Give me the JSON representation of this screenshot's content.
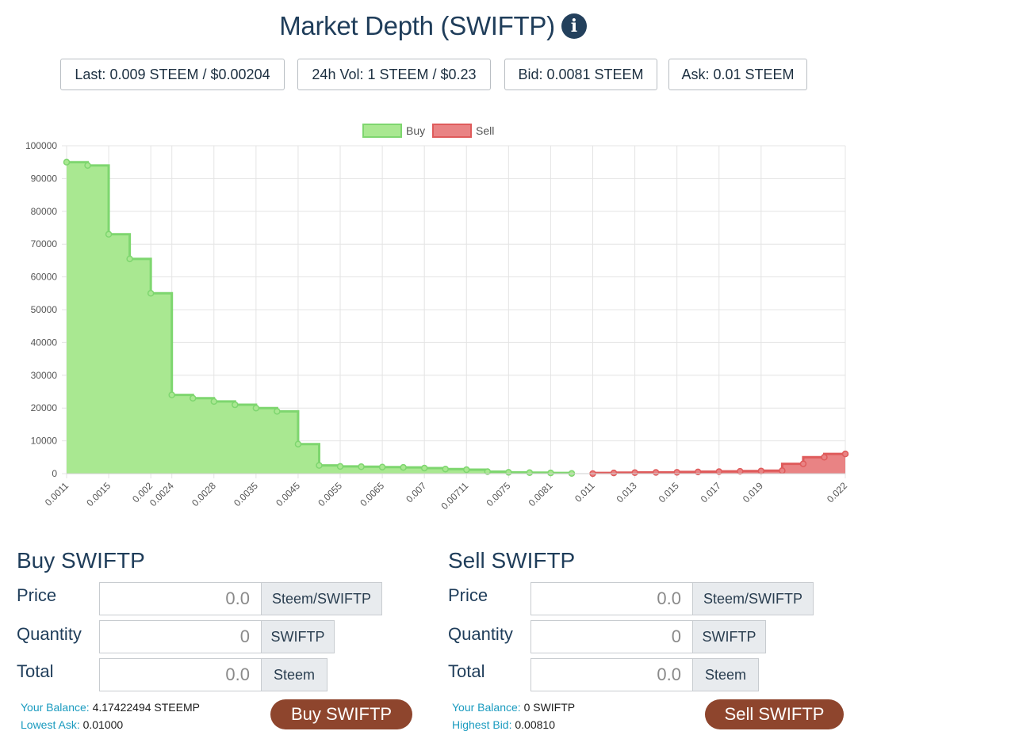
{
  "header": {
    "title": "Market Depth (SWIFTP)",
    "info_icon": "info-circle-icon"
  },
  "stats": {
    "last_label": "Last:",
    "last_value": "0.009 STEEM / $0.00204",
    "vol_label": "24h Vol:",
    "vol_value": "1 STEEM / $0.23",
    "bid_label": "Bid:",
    "bid_value": "0.0081 STEEM",
    "ask_label": "Ask:",
    "ask_value": "0.01 STEEM"
  },
  "chart_data": {
    "type": "area",
    "legend_position": "top-center",
    "grid": true,
    "ylim": [
      0,
      100000
    ],
    "y_ticks": [
      "100000",
      "90000",
      "80000",
      "70000",
      "60000",
      "50000",
      "40000",
      "30000",
      "20000",
      "10000",
      "0"
    ],
    "x_tick_labels": [
      "0.0011",
      "0.0015",
      "0.002",
      "0.0024",
      "0.0028",
      "0.0035",
      "0.0045",
      "0.0055",
      "0.0065",
      "0.007",
      "0.00711",
      "0.0075",
      "0.0081",
      "0.011",
      "0.013",
      "0.015",
      "0.017",
      "0.019",
      "0.022"
    ],
    "x_tick_index": [
      0,
      2,
      4,
      5,
      7,
      9,
      11,
      13,
      15,
      17,
      19,
      21,
      23,
      25,
      27,
      29,
      31,
      33,
      37
    ],
    "series": [
      {
        "name": "Buy",
        "color": "#7ed66f",
        "fill": "#a9e891",
        "values": [
          95000,
          94000,
          73000,
          65500,
          55000,
          24000,
          23000,
          22000,
          21000,
          20000,
          19000,
          9000,
          2500,
          2200,
          2100,
          2000,
          1900,
          1700,
          1400,
          1200,
          600,
          400,
          300,
          200,
          50
        ]
      },
      {
        "name": "Sell",
        "color": "#df5b5b",
        "fill": "#e98384",
        "values": [
          0,
          200,
          300,
          350,
          400,
          500,
          600,
          700,
          800,
          900,
          3000,
          5000,
          6000
        ]
      }
    ]
  },
  "buy": {
    "title": "Buy SWIFTP",
    "price_label": "Price",
    "price_placeholder": "0.0",
    "price_unit": "Steem/SWIFTP",
    "qty_label": "Quantity",
    "qty_placeholder": "0",
    "qty_unit": "SWIFTP",
    "total_label": "Total",
    "total_placeholder": "0.0",
    "total_unit": "Steem",
    "balance_label": "Your Balance:",
    "balance_value": "4.17422494 STEEMP",
    "best_label": "Lowest Ask:",
    "best_value": "0.01000",
    "button": "Buy SWIFTP"
  },
  "sell": {
    "title": "Sell SWIFTP",
    "price_label": "Price",
    "price_placeholder": "0.0",
    "price_unit": "Steem/SWIFTP",
    "qty_label": "Quantity",
    "qty_placeholder": "0",
    "qty_unit": "SWIFTP",
    "total_label": "Total",
    "total_placeholder": "0.0",
    "total_unit": "Steem",
    "balance_label": "Your Balance:",
    "balance_value": "0 SWIFTP",
    "best_label": "Highest Bid:",
    "best_value": "0.00810",
    "button": "Sell SWIFTP"
  },
  "colors": {
    "accent": "#8e452d",
    "heading": "#1f3d5a",
    "link": "#1a9bbf"
  }
}
